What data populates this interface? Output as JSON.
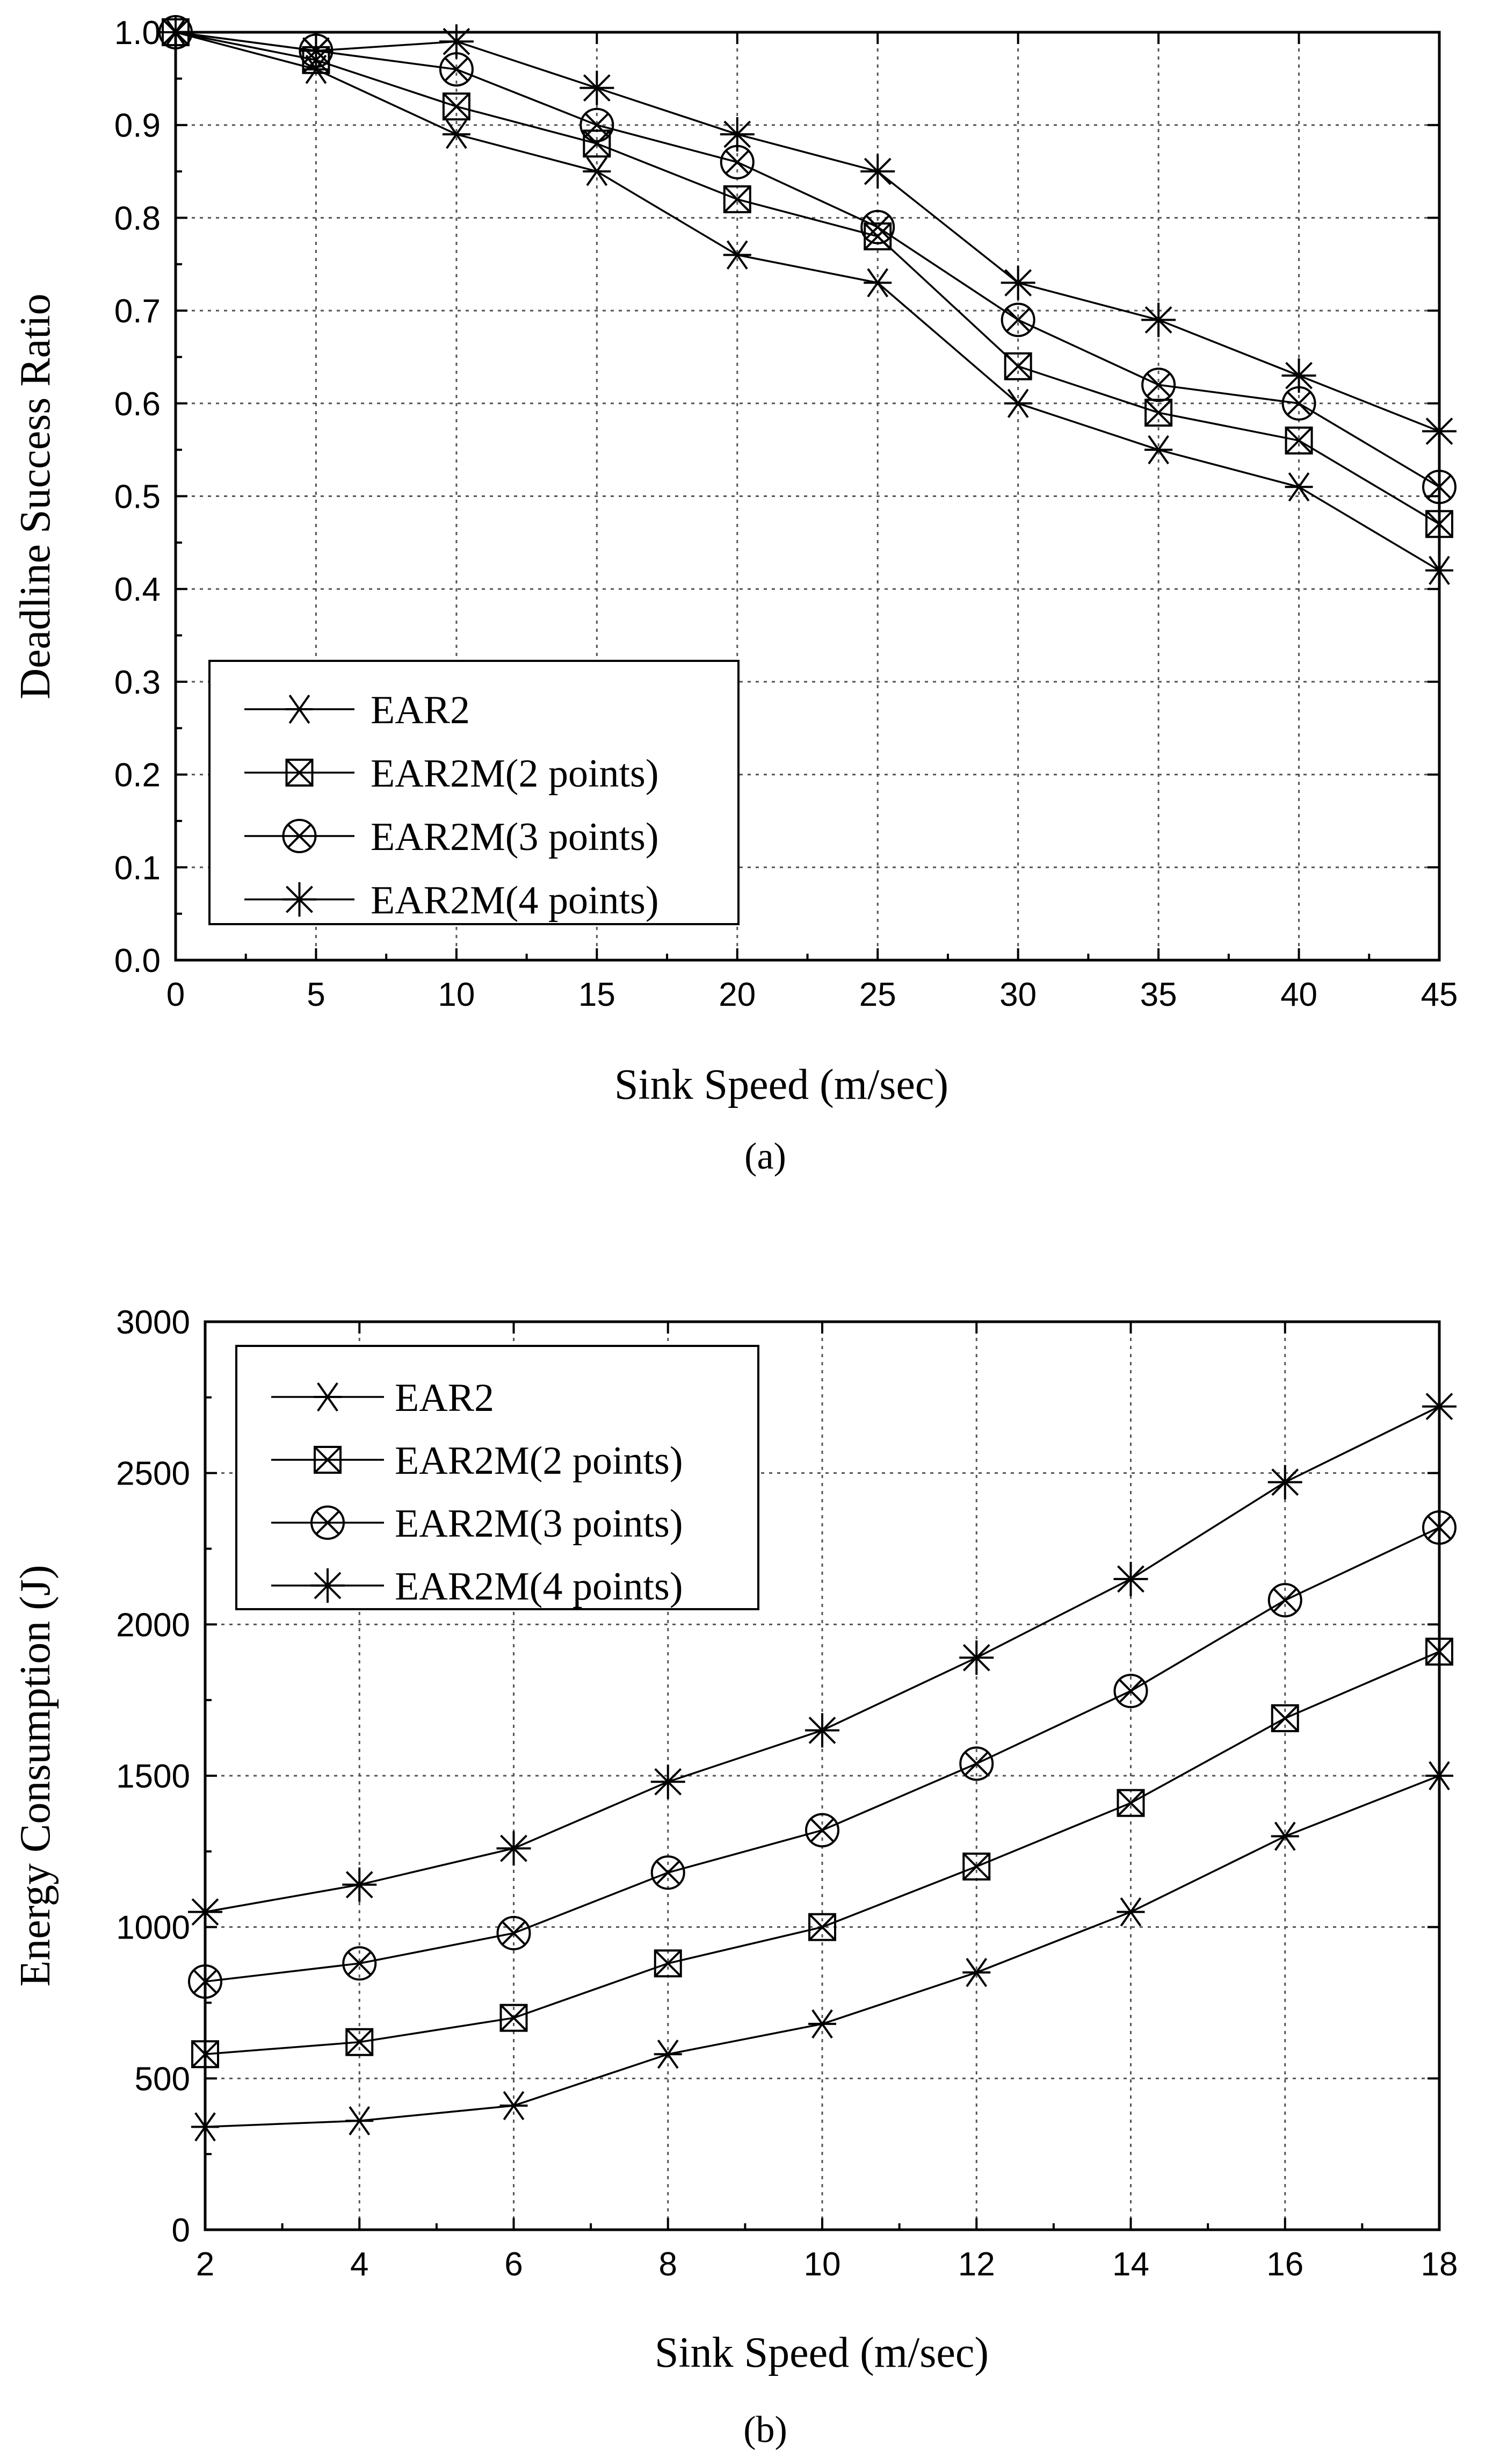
{
  "chart_data": [
    {
      "type": "line",
      "panel_label": "(a)",
      "xlabel": "Sink Speed (m/sec)",
      "ylabel": "Deadline Success Ratio",
      "x": [
        0,
        5,
        10,
        15,
        20,
        25,
        30,
        35,
        40,
        45
      ],
      "xlim": [
        0,
        45
      ],
      "ylim": [
        0.0,
        1.0
      ],
      "xticks": [
        "0",
        "5",
        "10",
        "15",
        "20",
        "25",
        "30",
        "35",
        "40",
        "45"
      ],
      "yticks": [
        "0.0",
        "0.1",
        "0.2",
        "0.3",
        "0.4",
        "0.5",
        "0.6",
        "0.7",
        "0.8",
        "0.9",
        "1.0"
      ],
      "grid": true,
      "legend_position": "lower-left",
      "series": [
        {
          "name": "EAR2",
          "marker": "asterisk",
          "values": [
            1.0,
            0.96,
            0.89,
            0.85,
            0.76,
            0.73,
            0.6,
            0.55,
            0.51,
            0.42
          ]
        },
        {
          "name": "EAR2M(2 points)",
          "marker": "boxed-x",
          "values": [
            1.0,
            0.97,
            0.92,
            0.88,
            0.82,
            0.78,
            0.64,
            0.59,
            0.56,
            0.47
          ]
        },
        {
          "name": "EAR2M(3 points)",
          "marker": "circled-x",
          "values": [
            1.0,
            0.98,
            0.96,
            0.9,
            0.86,
            0.79,
            0.69,
            0.62,
            0.6,
            0.51
          ]
        },
        {
          "name": "EAR2M(4 points)",
          "marker": "star",
          "values": [
            1.0,
            0.98,
            0.99,
            0.94,
            0.89,
            0.85,
            0.73,
            0.69,
            0.63,
            0.57
          ]
        }
      ]
    },
    {
      "type": "line",
      "panel_label": "(b)",
      "xlabel": "Sink Speed (m/sec)",
      "ylabel": "Energy Consumption (J)",
      "x": [
        2,
        4,
        6,
        8,
        10,
        12,
        14,
        16,
        18
      ],
      "xlim": [
        2,
        18
      ],
      "ylim": [
        0,
        3000
      ],
      "xticks": [
        "2",
        "4",
        "6",
        "8",
        "10",
        "12",
        "14",
        "16",
        "18"
      ],
      "yticks": [
        "0",
        "500",
        "1000",
        "1500",
        "2000",
        "2500",
        "3000"
      ],
      "grid": true,
      "legend_position": "top-left",
      "series": [
        {
          "name": "EAR2",
          "marker": "asterisk",
          "values": [
            340,
            360,
            410,
            580,
            680,
            850,
            1050,
            1300,
            1500
          ]
        },
        {
          "name": "EAR2M(2 points)",
          "marker": "boxed-x",
          "values": [
            580,
            620,
            700,
            880,
            1000,
            1200,
            1410,
            1690,
            1910
          ]
        },
        {
          "name": "EAR2M(3 points)",
          "marker": "circled-x",
          "values": [
            820,
            880,
            980,
            1180,
            1320,
            1540,
            1780,
            2080,
            2320
          ]
        },
        {
          "name": "EAR2M(4 points)",
          "marker": "star",
          "values": [
            1050,
            1140,
            1260,
            1480,
            1650,
            1890,
            2150,
            2470,
            2720
          ]
        }
      ]
    }
  ]
}
